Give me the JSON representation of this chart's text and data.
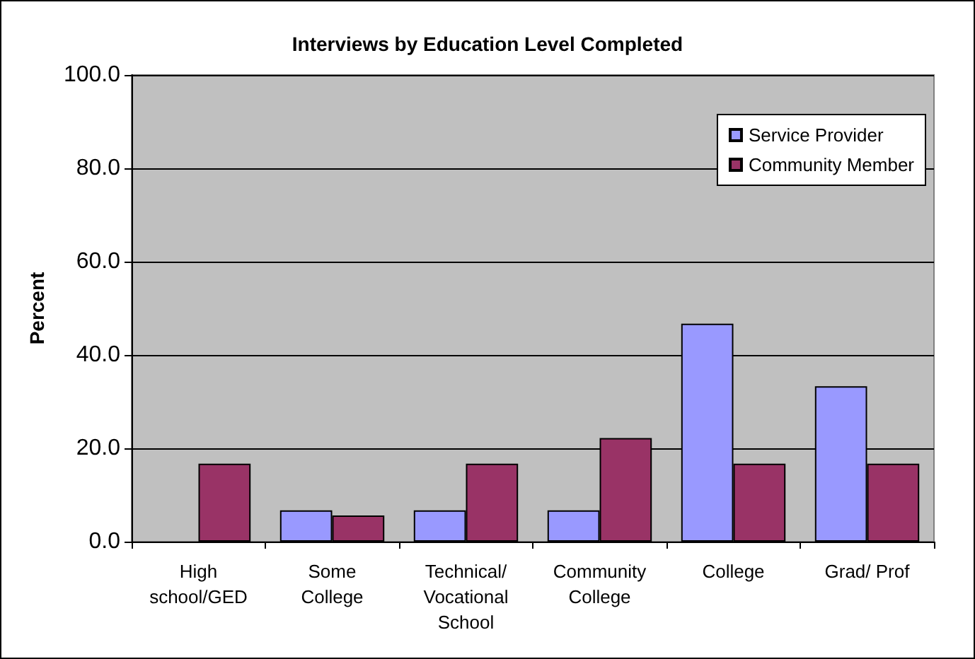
{
  "chart_data": {
    "type": "bar",
    "title": "Interviews by Education Level Completed",
    "ylabel": "Percent",
    "categories": [
      "High\nschool/GED",
      "Some\nCollege",
      "Technical/\nVocational\nSchool",
      "Community\nCollege",
      "College",
      "Grad/ Prof"
    ],
    "series": [
      {
        "name": "Service Provider",
        "color": "#9999ff",
        "values": [
          0,
          6.7,
          6.7,
          6.7,
          46.7,
          33.3
        ]
      },
      {
        "name": "Community Member",
        "color": "#993366",
        "values": [
          16.7,
          5.6,
          16.7,
          22.2,
          16.7,
          16.7
        ]
      }
    ],
    "ylim": [
      0,
      100
    ],
    "yticks": [
      {
        "value": 0,
        "label": "0.0"
      },
      {
        "value": 20,
        "label": "20.0"
      },
      {
        "value": 40,
        "label": "40.0"
      },
      {
        "value": 60,
        "label": "60.0"
      },
      {
        "value": 80,
        "label": "80.0"
      },
      {
        "value": 100,
        "label": "100.0"
      }
    ],
    "grid": "y",
    "legend": "top right"
  }
}
